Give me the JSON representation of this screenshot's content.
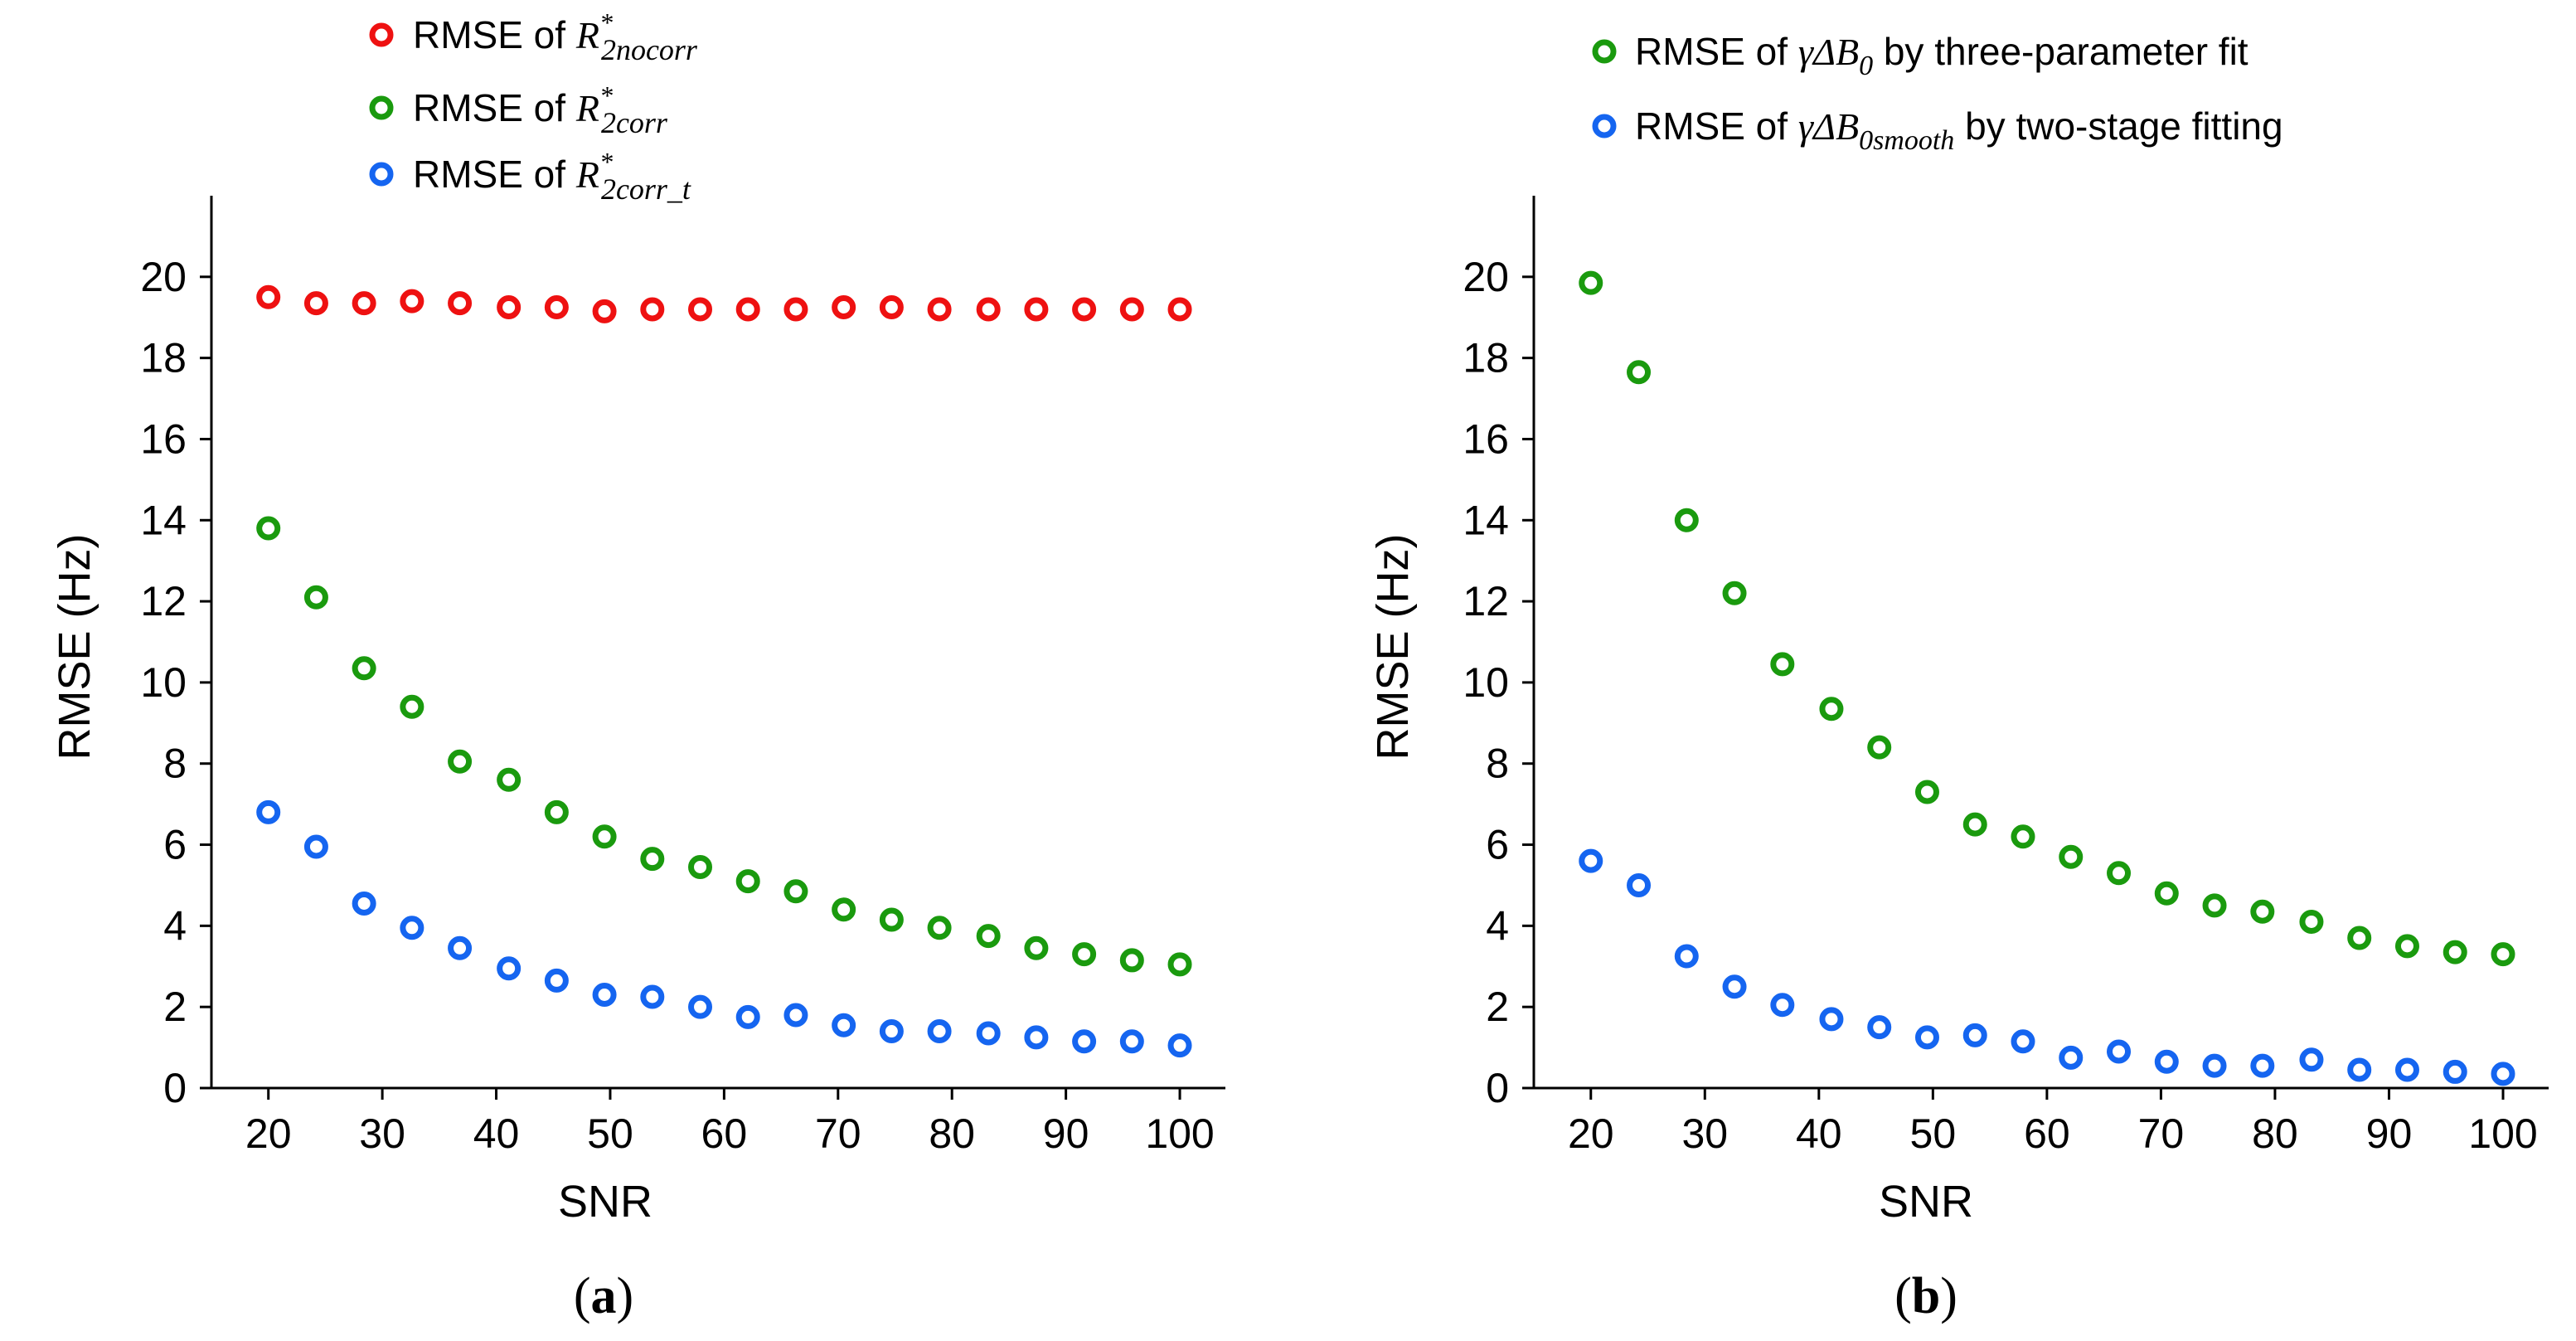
{
  "chart_data": [
    {
      "panel_label": "a",
      "type": "scatter",
      "xlabel": "SNR",
      "ylabel": "RMSE (Hz)",
      "xlim": [
        15,
        104
      ],
      "ylim": [
        0,
        22
      ],
      "xticks": [
        20,
        30,
        40,
        50,
        60,
        70,
        80,
        90,
        100
      ],
      "yticks": [
        0,
        2,
        4,
        6,
        8,
        10,
        12,
        14,
        16,
        18,
        20
      ],
      "legend_position": "top",
      "x": [
        20,
        24.2,
        28.4,
        32.6,
        36.8,
        41.1,
        45.3,
        49.5,
        53.7,
        57.9,
        62.1,
        66.3,
        70.5,
        74.7,
        78.9,
        83.2,
        87.4,
        91.6,
        95.8,
        100
      ],
      "series": [
        {
          "name": "RMSE of R*2nocorr",
          "legend_prefix": "RMSE of ",
          "symbol": "R",
          "superscript": "*",
          "subscript": "2nocorr",
          "color": "#ee1111",
          "values": [
            19.5,
            19.35,
            19.35,
            19.4,
            19.35,
            19.25,
            19.25,
            19.15,
            19.2,
            19.2,
            19.2,
            19.2,
            19.25,
            19.25,
            19.2,
            19.2,
            19.2,
            19.2,
            19.2,
            19.2
          ]
        },
        {
          "name": "RMSE of R*2corr",
          "legend_prefix": "RMSE of ",
          "symbol": "R",
          "superscript": "*",
          "subscript": "2corr",
          "color": "#1a9a0e",
          "values": [
            13.8,
            12.1,
            10.35,
            9.4,
            8.05,
            7.6,
            6.8,
            6.2,
            5.65,
            5.45,
            5.1,
            4.85,
            4.4,
            4.15,
            3.95,
            3.75,
            3.45,
            3.3,
            3.15,
            3.05
          ]
        },
        {
          "name": "RMSE of R*2corr_t",
          "legend_prefix": "RMSE of ",
          "symbol": "R",
          "superscript": "*",
          "subscript": "2corr_t",
          "color": "#1565f0",
          "values": [
            6.8,
            5.95,
            4.55,
            3.95,
            3.45,
            2.95,
            2.65,
            2.3,
            2.25,
            2.0,
            1.75,
            1.8,
            1.55,
            1.4,
            1.4,
            1.35,
            1.25,
            1.15,
            1.15,
            1.05
          ]
        }
      ]
    },
    {
      "panel_label": "b",
      "type": "scatter",
      "xlabel": "SNR",
      "ylabel": "RMSE (Hz)",
      "xlim": [
        15,
        104
      ],
      "ylim": [
        0,
        22
      ],
      "xticks": [
        20,
        30,
        40,
        50,
        60,
        70,
        80,
        90,
        100
      ],
      "yticks": [
        0,
        2,
        4,
        6,
        8,
        10,
        12,
        14,
        16,
        18,
        20
      ],
      "legend_position": "top-right",
      "x": [
        20,
        24.2,
        28.4,
        32.6,
        36.8,
        41.1,
        45.3,
        49.5,
        53.7,
        57.9,
        62.1,
        66.3,
        70.5,
        74.7,
        78.9,
        83.2,
        87.4,
        91.6,
        95.8,
        100
      ],
      "series": [
        {
          "name": "RMSE of γΔB0 by three-parameter fit",
          "legend_prefix": "RMSE of ",
          "symbol": "γΔB",
          "subscript": "0",
          "legend_suffix": " by three-parameter fit",
          "color": "#1a9a0e",
          "values": [
            19.85,
            17.65,
            14.0,
            12.2,
            10.45,
            9.35,
            8.4,
            7.3,
            6.5,
            6.2,
            5.7,
            5.3,
            4.8,
            4.5,
            4.35,
            4.1,
            3.7,
            3.5,
            3.35,
            3.3
          ]
        },
        {
          "name": "RMSE of γΔB0smooth by two-stage fitting",
          "legend_prefix": "RMSE of ",
          "symbol": "γΔB",
          "subscript": "0smooth",
          "legend_suffix": " by two-stage fitting",
          "color": "#1565f0",
          "values": [
            5.6,
            5.0,
            3.25,
            2.5,
            2.05,
            1.7,
            1.5,
            1.25,
            1.3,
            1.15,
            0.75,
            0.9,
            0.65,
            0.55,
            0.55,
            0.7,
            0.45,
            0.45,
            0.4,
            0.35
          ]
        }
      ]
    }
  ]
}
